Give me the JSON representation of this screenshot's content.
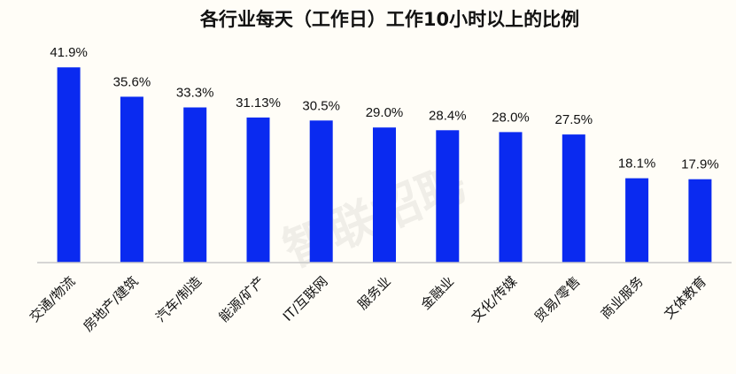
{
  "chart_data": {
    "type": "bar",
    "title": "各行业每天（工作日）工作10小时以上的比例",
    "categories": [
      "交通/物流",
      "房地产/建筑",
      "汽车/制造",
      "能源/矿产",
      "IT/互联网",
      "服务业",
      "金融业",
      "文化/传媒",
      "贸易/零售",
      "商业服务",
      "文体教育"
    ],
    "values": [
      41.9,
      35.6,
      33.3,
      31.13,
      30.5,
      29.0,
      28.4,
      28.0,
      27.5,
      18.1,
      17.9
    ],
    "data_labels": [
      "41.9%",
      "35.6%",
      "33.3%",
      "31.13%",
      "30.5%",
      "29.0%",
      "28.4%",
      "28.0%",
      "27.5%",
      "18.1%",
      "17.9%"
    ],
    "xlabel": "",
    "ylabel": "",
    "ylim": [
      0,
      50
    ],
    "grid": false,
    "legend": "none",
    "bar_color": "#0a2af0"
  },
  "watermark": "智联招聘"
}
